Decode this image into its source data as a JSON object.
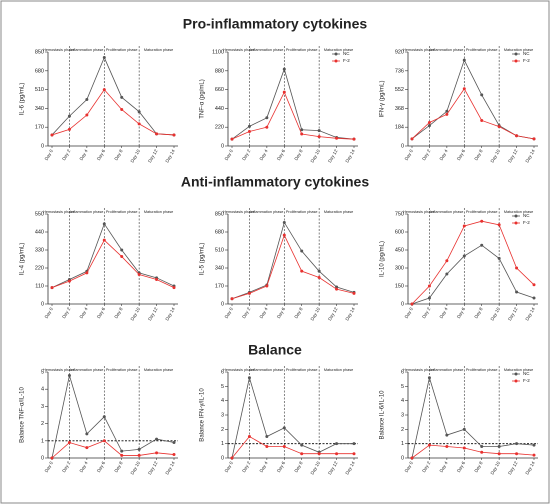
{
  "section_titles": [
    "Pro-inflammatory cytokines",
    "Anti-inflammatory cytokines",
    "Balance"
  ],
  "chart_data": [
    {
      "type": "line",
      "y_label": "IL-6 (pg/mL)",
      "categories": [
        "Day 0",
        "Day 2",
        "Day 4",
        "Day 6",
        "Day 8",
        "Day 10",
        "Day 12",
        "Day 14"
      ],
      "phases": [
        "Hemostasis phase",
        "Inflammation phase",
        "Proliferation phase",
        "Maturation phase"
      ],
      "legend": false,
      "ylim": [
        0,
        850
      ],
      "yticks": [
        0,
        170,
        340,
        510,
        680,
        850
      ],
      "series": [
        {
          "name": "NC",
          "color": "#555555",
          "values": [
            100,
            270,
            420,
            800,
            440,
            310,
            110,
            100
          ]
        },
        {
          "name": "F-2",
          "color": "#e8312f",
          "values": [
            100,
            150,
            280,
            510,
            330,
            200,
            110,
            100
          ]
        }
      ]
    },
    {
      "type": "line",
      "y_label": "TNF-α (pg/mL)",
      "categories": [
        "Day 0",
        "Day 2",
        "Day 4",
        "Day 6",
        "Day 8",
        "Day 10",
        "Day 12",
        "Day 14"
      ],
      "phases": [
        "Hemostasis phase",
        "Inflammation phase",
        "Proliferation phase",
        "Maturation phase"
      ],
      "legend": true,
      "ylim": [
        0,
        1100
      ],
      "yticks": [
        0,
        220,
        440,
        660,
        880,
        1100
      ],
      "series": [
        {
          "name": "NC",
          "color": "#555555",
          "values": [
            80,
            230,
            330,
            900,
            190,
            180,
            100,
            80
          ]
        },
        {
          "name": "F-2",
          "color": "#e8312f",
          "values": [
            80,
            170,
            220,
            630,
            140,
            110,
            90,
            80
          ]
        }
      ]
    },
    {
      "type": "line",
      "y_label": "IFN-γ (pg/mL)",
      "categories": [
        "Day 0",
        "Day 2",
        "Day 4",
        "Day 6",
        "Day 8",
        "Day 10",
        "Day 12",
        "Day 14"
      ],
      "phases": [
        "Hemostasis phase",
        "Inflammation phase",
        "Proliferation phase",
        "Maturation phase"
      ],
      "legend": true,
      "ylim": [
        0,
        920
      ],
      "yticks": [
        0,
        184,
        368,
        552,
        736,
        920
      ],
      "series": [
        {
          "name": "NC",
          "color": "#555555",
          "values": [
            70,
            200,
            340,
            840,
            500,
            200,
            100,
            70
          ]
        },
        {
          "name": "F-2",
          "color": "#e8312f",
          "values": [
            70,
            230,
            310,
            560,
            250,
            190,
            100,
            70
          ]
        }
      ]
    },
    {
      "type": "line",
      "y_label": "IL-4 (pg/mL)",
      "categories": [
        "Day 0",
        "Day 2",
        "Day 4",
        "Day 6",
        "Day 8",
        "Day 10",
        "Day 12",
        "Day 14"
      ],
      "phases": [
        "Hemostasis phase",
        "Inflammation phase",
        "Proliferation phase",
        "Maturation phase"
      ],
      "legend": false,
      "ylim": [
        0,
        550
      ],
      "yticks": [
        0,
        110,
        220,
        330,
        440,
        550
      ],
      "series": [
        {
          "name": "NC",
          "color": "#555555",
          "values": [
            100,
            150,
            200,
            490,
            330,
            190,
            160,
            110
          ]
        },
        {
          "name": "F-2",
          "color": "#e8312f",
          "values": [
            100,
            140,
            190,
            390,
            290,
            180,
            150,
            100
          ]
        }
      ]
    },
    {
      "type": "line",
      "y_label": "IL-5 (pg/mL)",
      "categories": [
        "Day 0",
        "Day 2",
        "Day 4",
        "Day 6",
        "Day 8",
        "Day 10",
        "Day 12",
        "Day 14"
      ],
      "phases": [
        "Hemostasis phase",
        "Inflammation phase",
        "Proliferation phase",
        "Maturation phase"
      ],
      "legend": false,
      "ylim": [
        0,
        850
      ],
      "yticks": [
        0,
        170,
        340,
        510,
        680,
        850
      ],
      "series": [
        {
          "name": "NC",
          "color": "#555555",
          "values": [
            50,
            110,
            180,
            770,
            500,
            310,
            160,
            110
          ]
        },
        {
          "name": "F-2",
          "color": "#e8312f",
          "values": [
            50,
            100,
            170,
            650,
            310,
            250,
            140,
            100
          ]
        }
      ]
    },
    {
      "type": "line",
      "y_label": "IL-10 (pg/mL)",
      "categories": [
        "Day 0",
        "Day 2",
        "Day 4",
        "Day 6",
        "Day 8",
        "Day 10",
        "Day 12",
        "Day 14"
      ],
      "phases": [
        "Hemostasis phase",
        "Inflammation phase",
        "Proliferation phase",
        "Maturation phase"
      ],
      "legend": true,
      "ylim": [
        0,
        750
      ],
      "yticks": [
        0,
        150,
        300,
        450,
        600,
        750
      ],
      "series": [
        {
          "name": "NC",
          "color": "#555555",
          "values": [
            0,
            50,
            250,
            400,
            490,
            380,
            100,
            50
          ]
        },
        {
          "name": "F-2",
          "color": "#e8312f",
          "values": [
            0,
            150,
            360,
            650,
            690,
            660,
            300,
            160
          ]
        }
      ]
    },
    {
      "type": "line",
      "y_label": "Balance TNF-α/IL-10",
      "categories": [
        "Day 0",
        "Day 2",
        "Day 4",
        "Day 6",
        "Day 8",
        "Day 10",
        "Day 12",
        "Day 14"
      ],
      "phases": [
        "Hemostasis phase",
        "Inflammation phase",
        "Proliferation phase",
        "Maturation phase"
      ],
      "legend": false,
      "ylim": [
        0,
        5
      ],
      "yticks": [
        0,
        1,
        2,
        3,
        4,
        5
      ],
      "ref_line": 1,
      "series": [
        {
          "name": "NC",
          "color": "#555555",
          "values": [
            0,
            4.8,
            1.4,
            2.4,
            0.4,
            0.5,
            1.1,
            0.9
          ]
        },
        {
          "name": "F-2",
          "color": "#e8312f",
          "values": [
            0,
            0.9,
            0.6,
            1.0,
            0.15,
            0.15,
            0.3,
            0.2
          ]
        }
      ]
    },
    {
      "type": "line",
      "y_label": "Balance IFN-γ/IL-10",
      "categories": [
        "Day 0",
        "Day 2",
        "Day 4",
        "Day 6",
        "Day 8",
        "Day 10",
        "Day 12",
        "Day 14"
      ],
      "phases": [
        "Hemostasis phase",
        "Inflammation phase",
        "Proliferation phase",
        "Maturation phase"
      ],
      "legend": false,
      "ylim": [
        0,
        6
      ],
      "yticks": [
        0,
        1,
        2,
        3,
        4,
        5,
        6
      ],
      "ref_line": 1,
      "series": [
        {
          "name": "NC",
          "color": "#555555",
          "values": [
            0,
            5.6,
            1.5,
            2.1,
            0.9,
            0.4,
            1.0,
            1.0
          ]
        },
        {
          "name": "F-2",
          "color": "#e8312f",
          "values": [
            0,
            1.5,
            0.8,
            0.8,
            0.3,
            0.3,
            0.3,
            0.3
          ]
        }
      ]
    },
    {
      "type": "line",
      "y_label": "Balance IL-6/IL-10",
      "categories": [
        "Day 0",
        "Day 2",
        "Day 4",
        "Day 6",
        "Day 8",
        "Day 10",
        "Day 12",
        "Day 14"
      ],
      "phases": [
        "Hemostasis phase",
        "Inflammation phase",
        "Proliferation phase",
        "Maturation phase"
      ],
      "legend": true,
      "ylim": [
        0,
        6
      ],
      "yticks": [
        0,
        1,
        2,
        3,
        4,
        5,
        6
      ],
      "ref_line": 1,
      "series": [
        {
          "name": "NC",
          "color": "#555555",
          "values": [
            0,
            5.6,
            1.6,
            2.0,
            0.8,
            0.8,
            1.0,
            0.9
          ]
        },
        {
          "name": "F-2",
          "color": "#e8312f",
          "values": [
            0,
            0.9,
            0.8,
            0.7,
            0.4,
            0.3,
            0.3,
            0.2
          ]
        }
      ]
    }
  ]
}
